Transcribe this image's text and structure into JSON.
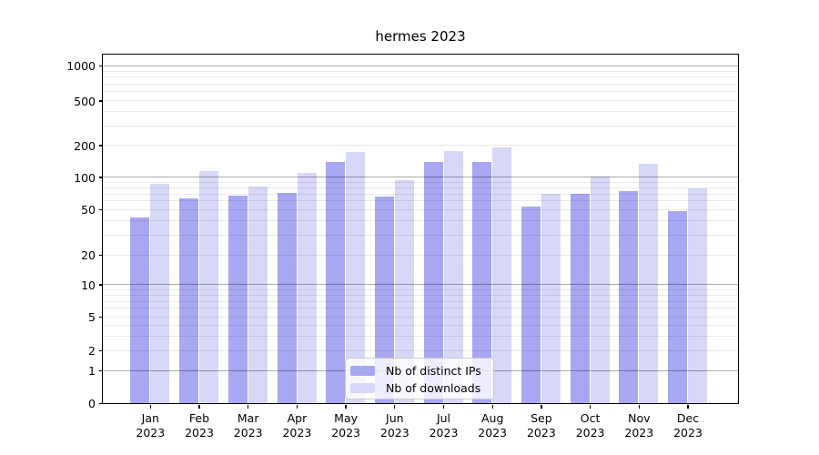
{
  "chart_data": {
    "type": "bar",
    "title": "hermes 2023",
    "categories": [
      "Jan 2023",
      "Feb 2023",
      "Mar 2023",
      "Apr 2023",
      "May 2023",
      "Jun 2023",
      "Jul 2023",
      "Aug 2023",
      "Sep 2023",
      "Oct 2023",
      "Nov 2023",
      "Dec 2023"
    ],
    "series": [
      {
        "name": "Nb of distinct IPs",
        "color": "#a7a7f2",
        "values": [
          43,
          64,
          68,
          72,
          140,
          66,
          139,
          140,
          54,
          70,
          75,
          49
        ]
      },
      {
        "name": "Nb of downloads",
        "color": "#d7d7f7",
        "values": [
          87,
          115,
          82,
          110,
          175,
          95,
          178,
          190,
          71,
          102,
          135,
          79
        ]
      }
    ],
    "yscale": "symlog",
    "y_ticks": [
      0,
      1,
      2,
      5,
      10,
      20,
      50,
      100,
      200,
      500,
      1000
    ],
    "ylim": [
      0,
      1300
    ],
    "grid": "both",
    "legend_position": "lower center",
    "colors": {
      "axis": "#000000",
      "major_grid": "#ababab",
      "minor_grid": "#eaeaea",
      "background": "#ffffff"
    }
  }
}
